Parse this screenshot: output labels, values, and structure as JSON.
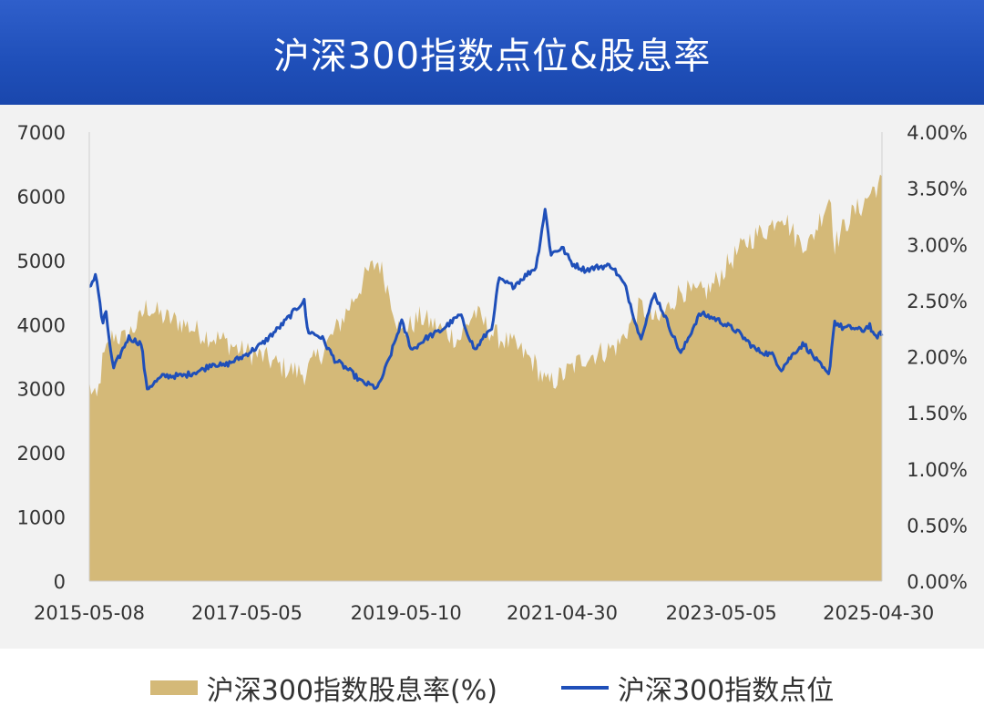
{
  "title": "沪深300指数点位&股息率",
  "legend": {
    "dividend_label": "沪深300指数股息率(%)",
    "index_label": "沪深300指数点位"
  },
  "colors": {
    "header": "#1f4fb9",
    "index_line": "#1f4fb9",
    "dividend_area": "#d4b978"
  },
  "chart_data": {
    "type": "line",
    "x_tick_labels": [
      "2015-05-08",
      "2017-05-05",
      "2019-05-10",
      "2021-04-30",
      "2023-05-05",
      "2025-04-30"
    ],
    "x_range": [
      "2015-05-08",
      "2025-05-16"
    ],
    "y_left": {
      "ticks": [
        "0",
        "1000",
        "2000",
        "3000",
        "4000",
        "5000",
        "6000",
        "7000"
      ],
      "min": 0,
      "max": 7000
    },
    "y_right": {
      "ticks": [
        "0.00%",
        "0.50%",
        "1.00%",
        "1.50%",
        "2.00%",
        "2.50%",
        "3.00%",
        "3.50%",
        "4.00%"
      ],
      "min": 0,
      "max": 4
    },
    "grid": false,
    "legend_position": "bottom",
    "series": [
      {
        "name": "沪深300指数股息率(%)",
        "type": "area",
        "axis": "right",
        "x": [
          "2015-05-08",
          "2015-06-10",
          "2015-07-08",
          "2015-08-26",
          "2015-10-15",
          "2015-12-20",
          "2016-01-28",
          "2016-04-15",
          "2016-07-10",
          "2016-10-15",
          "2017-01-10",
          "2017-04-10",
          "2017-07-15",
          "2017-10-20",
          "2018-01-25",
          "2018-04-20",
          "2018-07-10",
          "2018-09-20",
          "2018-11-15",
          "2019-01-03",
          "2019-02-25",
          "2019-04-15",
          "2019-07-15",
          "2019-10-15",
          "2020-01-10",
          "2020-03-20",
          "2020-06-15",
          "2020-09-15",
          "2020-12-20",
          "2021-02-18",
          "2021-05-15",
          "2021-08-15",
          "2021-11-15",
          "2022-01-15",
          "2022-04-26",
          "2022-07-15",
          "2022-10-31",
          "2022-12-31",
          "2023-03-15",
          "2023-06-15",
          "2023-09-15",
          "2023-12-15",
          "2024-02-05",
          "2024-04-15",
          "2024-06-15",
          "2024-09-20",
          "2024-10-08",
          "2024-12-20",
          "2025-02-15",
          "2025-04-08",
          "2025-05-16"
        ],
        "values": [
          1.75,
          1.58,
          1.95,
          2.2,
          2.15,
          2.3,
          2.45,
          2.35,
          2.3,
          2.2,
          2.15,
          2.05,
          2.0,
          1.9,
          1.85,
          2.05,
          2.3,
          2.55,
          2.75,
          2.85,
          2.55,
          2.2,
          2.35,
          2.25,
          2.15,
          2.4,
          2.2,
          2.1,
          1.95,
          1.75,
          1.85,
          2.0,
          2.05,
          2.1,
          2.45,
          2.3,
          2.6,
          2.55,
          2.6,
          2.85,
          3.05,
          3.15,
          3.3,
          3.05,
          3.0,
          3.45,
          3.0,
          3.25,
          3.35,
          3.5,
          3.55
        ]
      },
      {
        "name": "沪深300指数点位",
        "type": "line",
        "axis": "left",
        "x": [
          "2015-05-08",
          "2015-06-08",
          "2015-07-08",
          "2015-07-23",
          "2015-08-26",
          "2015-11-05",
          "2016-01-04",
          "2016-01-28",
          "2016-04-15",
          "2016-07-15",
          "2016-10-15",
          "2016-11-29",
          "2017-01-15",
          "2017-04-15",
          "2017-07-15",
          "2017-10-15",
          "2018-01-24",
          "2018-02-09",
          "2018-04-15",
          "2018-06-15",
          "2018-08-15",
          "2018-10-18",
          "2018-12-31",
          "2019-02-25",
          "2019-04-19",
          "2019-06-06",
          "2019-08-15",
          "2019-10-15",
          "2020-01-15",
          "2020-03-23",
          "2020-06-15",
          "2020-07-09",
          "2020-09-15",
          "2020-12-31",
          "2021-02-10",
          "2021-03-09",
          "2021-04-30",
          "2021-06-15",
          "2021-08-15",
          "2021-10-15",
          "2021-12-15",
          "2022-02-15",
          "2022-04-26",
          "2022-06-30",
          "2022-08-15",
          "2022-10-31",
          "2023-01-15",
          "2023-01-31",
          "2023-04-15",
          "2023-07-15",
          "2023-10-15",
          "2023-12-31",
          "2024-02-05",
          "2024-04-15",
          "2024-05-20",
          "2024-07-15",
          "2024-09-13",
          "2024-10-08",
          "2024-11-15",
          "2024-12-31",
          "2025-02-15",
          "2025-03-20",
          "2025-04-08",
          "2025-05-16"
        ],
        "values": [
          4560,
          4800,
          4000,
          4200,
          3300,
          3800,
          3700,
          3000,
          3200,
          3200,
          3300,
          3400,
          3350,
          3500,
          3700,
          4000,
          4380,
          3900,
          3800,
          3450,
          3300,
          3100,
          3010,
          3500,
          4050,
          3600,
          3800,
          3900,
          4150,
          3600,
          4000,
          4700,
          4600,
          4900,
          5800,
          5100,
          5200,
          4950,
          4850,
          4900,
          4920,
          4600,
          3780,
          4480,
          4150,
          3540,
          4100,
          4170,
          4080,
          3900,
          3600,
          3520,
          3300,
          3600,
          3700,
          3450,
          3200,
          4050,
          3950,
          3950,
          3900,
          4000,
          3800,
          3860
        ]
      }
    ]
  }
}
